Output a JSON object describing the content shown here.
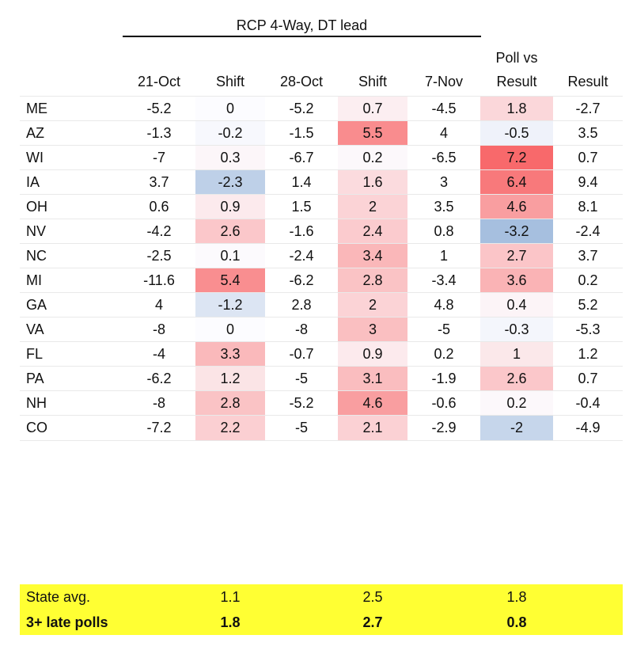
{
  "chart_data": {
    "type": "table",
    "title": "RCP 4-Way, DT lead",
    "columns": [
      "",
      "21-Oct",
      "Shift",
      "28-Oct",
      "Shift",
      "7-Nov",
      "Poll vs|Result",
      "Result"
    ],
    "column_labels": [
      {
        "lines": [
          ""
        ]
      },
      {
        "lines": [
          "21-Oct"
        ]
      },
      {
        "lines": [
          "Shift"
        ]
      },
      {
        "lines": [
          "28-Oct"
        ]
      },
      {
        "lines": [
          "Shift"
        ]
      },
      {
        "lines": [
          "7-Nov"
        ]
      },
      {
        "lines": [
          "Poll vs",
          "Result"
        ]
      },
      {
        "lines": [
          "Result"
        ]
      }
    ],
    "rows": [
      {
        "state": "ME",
        "oct21": "-5.2",
        "shift1": "0",
        "oct28": "-5.2",
        "shift2": "0.7",
        "nov7": "-4.5",
        "poll_vs_result": "1.8",
        "result": "-2.7"
      },
      {
        "state": "AZ",
        "oct21": "-1.3",
        "shift1": "-0.2",
        "oct28": "-1.5",
        "shift2": "5.5",
        "nov7": "4",
        "poll_vs_result": "-0.5",
        "result": "3.5"
      },
      {
        "state": "WI",
        "oct21": "-7",
        "shift1": "0.3",
        "oct28": "-6.7",
        "shift2": "0.2",
        "nov7": "-6.5",
        "poll_vs_result": "7.2",
        "result": "0.7"
      },
      {
        "state": "IA",
        "oct21": "3.7",
        "shift1": "-2.3",
        "oct28": "1.4",
        "shift2": "1.6",
        "nov7": "3",
        "poll_vs_result": "6.4",
        "result": "9.4"
      },
      {
        "state": "OH",
        "oct21": "0.6",
        "shift1": "0.9",
        "oct28": "1.5",
        "shift2": "2",
        "nov7": "3.5",
        "poll_vs_result": "4.6",
        "result": "8.1"
      },
      {
        "state": "NV",
        "oct21": "-4.2",
        "shift1": "2.6",
        "oct28": "-1.6",
        "shift2": "2.4",
        "nov7": "0.8",
        "poll_vs_result": "-3.2",
        "result": "-2.4"
      },
      {
        "state": "NC",
        "oct21": "-2.5",
        "shift1": "0.1",
        "oct28": "-2.4",
        "shift2": "3.4",
        "nov7": "1",
        "poll_vs_result": "2.7",
        "result": "3.7"
      },
      {
        "state": "MI",
        "oct21": "-11.6",
        "shift1": "5.4",
        "oct28": "-6.2",
        "shift2": "2.8",
        "nov7": "-3.4",
        "poll_vs_result": "3.6",
        "result": "0.2"
      },
      {
        "state": "GA",
        "oct21": "4",
        "shift1": "-1.2",
        "oct28": "2.8",
        "shift2": "2",
        "nov7": "4.8",
        "poll_vs_result": "0.4",
        "result": "5.2"
      },
      {
        "state": "VA",
        "oct21": "-8",
        "shift1": "0",
        "oct28": "-8",
        "shift2": "3",
        "nov7": "-5",
        "poll_vs_result": "-0.3",
        "result": "-5.3"
      },
      {
        "state": "FL",
        "oct21": "-4",
        "shift1": "3.3",
        "oct28": "-0.7",
        "shift2": "0.9",
        "nov7": "0.2",
        "poll_vs_result": "1",
        "result": "1.2"
      },
      {
        "state": "PA",
        "oct21": "-6.2",
        "shift1": "1.2",
        "oct28": "-5",
        "shift2": "3.1",
        "nov7": "-1.9",
        "poll_vs_result": "2.6",
        "result": "0.7"
      },
      {
        "state": "NH",
        "oct21": "-8",
        "shift1": "2.8",
        "oct28": "-5.2",
        "shift2": "4.6",
        "nov7": "-0.6",
        "poll_vs_result": "0.2",
        "result": "-0.4"
      },
      {
        "state": "CO",
        "oct21": "-7.2",
        "shift1": "2.2",
        "oct28": "-5",
        "shift2": "2.1",
        "nov7": "-2.9",
        "poll_vs_result": "-2",
        "result": "-4.9"
      }
    ],
    "summary": [
      {
        "label": "State avg.",
        "shift1": "1.1",
        "shift2": "2.5",
        "poll_vs_result": "1.8",
        "bold": false
      },
      {
        "label": "3+ late polls",
        "shift1": "1.8",
        "shift2": "2.7",
        "poll_vs_result": "0.8",
        "bold": true
      }
    ],
    "heatmap_columns": [
      "shift1",
      "shift2",
      "poll_vs_result"
    ],
    "colors": {
      "positive": "#f8696b",
      "negative": "#a6bfdf",
      "neutral": "#fcfcff",
      "summary_bg": "#ffff33"
    }
  }
}
